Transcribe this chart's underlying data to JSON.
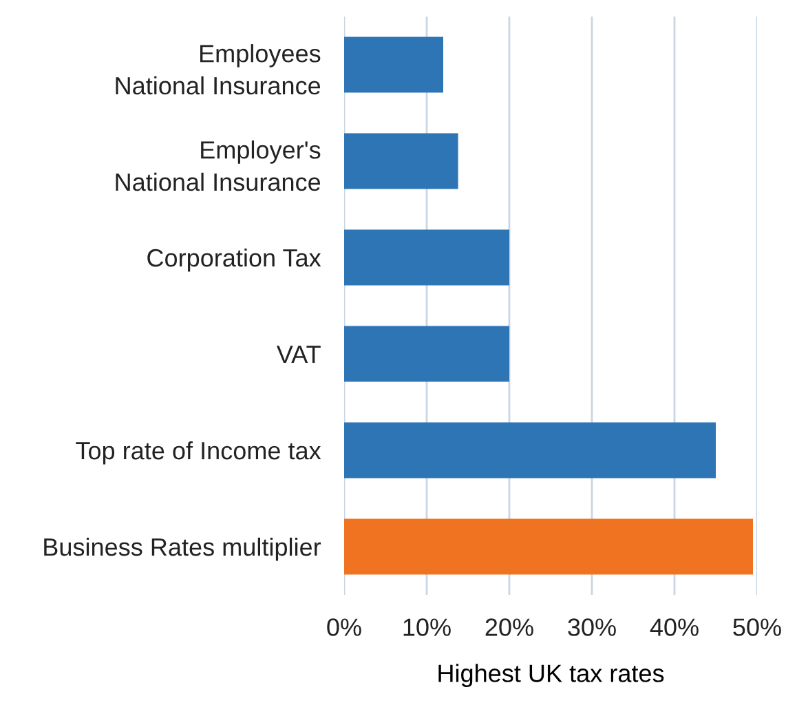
{
  "chart_data": {
    "type": "bar",
    "orientation": "horizontal",
    "xlabel": "Highest UK tax rates",
    "categories": [
      "Employees National Insurance",
      "Employer's National Insurance",
      "Corporation Tax",
      "VAT",
      "Top rate of Income tax",
      "Business Rates multiplier"
    ],
    "values": [
      12,
      13.8,
      20,
      20,
      45,
      49.5
    ],
    "colors": [
      "#2e75b6",
      "#2e75b6",
      "#2e75b6",
      "#2e75b6",
      "#2e75b6",
      "#f07322"
    ],
    "xlim": [
      0,
      50
    ],
    "xticks": [
      {
        "value": 0,
        "label": "0%"
      },
      {
        "value": 10,
        "label": "10%"
      },
      {
        "value": 20,
        "label": "20%"
      },
      {
        "value": 30,
        "label": "30%"
      },
      {
        "value": 40,
        "label": "40%"
      },
      {
        "value": 50,
        "label": "50%"
      }
    ],
    "grid": "x"
  }
}
